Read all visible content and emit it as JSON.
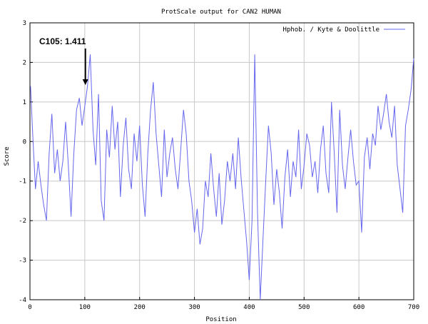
{
  "chart_data": {
    "type": "line",
    "title": "ProtScale output for CAN2 HUMAN",
    "xlabel": "Position",
    "ylabel": "Score",
    "xlim": [
      0,
      700
    ],
    "ylim": [
      -4,
      3
    ],
    "xticks": [
      0,
      100,
      200,
      300,
      400,
      500,
      600,
      700
    ],
    "yticks": [
      -4,
      -3,
      -2,
      -1,
      0,
      1,
      2,
      3
    ],
    "grid": true,
    "legend": "top-right",
    "series": [
      {
        "name": "Hphob. / Kyte & Doolittle",
        "color": "#6666ee",
        "x": [
          1,
          5,
          10,
          15,
          20,
          25,
          30,
          35,
          40,
          45,
          50,
          55,
          60,
          65,
          70,
          75,
          80,
          85,
          90,
          95,
          100,
          105,
          110,
          115,
          120,
          125,
          130,
          135,
          140,
          145,
          150,
          155,
          160,
          165,
          170,
          175,
          180,
          185,
          190,
          195,
          200,
          205,
          210,
          215,
          220,
          225,
          230,
          235,
          240,
          245,
          250,
          255,
          260,
          265,
          270,
          275,
          280,
          285,
          290,
          295,
          300,
          305,
          310,
          315,
          320,
          325,
          330,
          335,
          340,
          345,
          350,
          355,
          360,
          365,
          370,
          375,
          380,
          385,
          390,
          395,
          400,
          405,
          410,
          415,
          420,
          425,
          430,
          435,
          440,
          445,
          450,
          455,
          460,
          465,
          470,
          475,
          480,
          485,
          490,
          495,
          500,
          505,
          510,
          515,
          520,
          525,
          530,
          535,
          540,
          545,
          550,
          555,
          560,
          565,
          570,
          575,
          580,
          585,
          590,
          595,
          600,
          605,
          610,
          615,
          620,
          625,
          630,
          635,
          640,
          645,
          650,
          655,
          660,
          665,
          670,
          675,
          680,
          685,
          690,
          695,
          700
        ],
        "y": [
          1.4,
          0.2,
          -1.2,
          -0.5,
          -1.1,
          -1.6,
          -2.0,
          -0.3,
          0.7,
          -0.8,
          -0.2,
          -1.0,
          -0.5,
          0.5,
          -0.6,
          -1.9,
          -0.3,
          0.8,
          1.1,
          0.4,
          0.9,
          1.411,
          2.2,
          0.3,
          -0.6,
          1.2,
          -1.5,
          -2.0,
          0.3,
          -0.4,
          0.9,
          -0.2,
          0.5,
          -1.4,
          -0.1,
          0.6,
          -0.7,
          -1.2,
          0.2,
          -0.5,
          0.4,
          -1.1,
          -1.9,
          -0.3,
          0.8,
          1.5,
          0.2,
          -0.6,
          -1.4,
          0.3,
          -0.9,
          -0.3,
          0.1,
          -0.7,
          -1.2,
          -0.2,
          0.8,
          0.2,
          -1.0,
          -1.5,
          -2.3,
          -1.7,
          -2.6,
          -2.2,
          -1.0,
          -1.4,
          -0.3,
          -1.2,
          -1.9,
          -0.8,
          -2.1,
          -1.5,
          -0.5,
          -1.0,
          -0.3,
          -1.2,
          0.1,
          -0.9,
          -1.7,
          -2.5,
          -3.5,
          -2.0,
          2.2,
          -1.8,
          -4.0,
          -2.5,
          -1.0,
          0.4,
          -0.3,
          -1.6,
          -0.7,
          -1.3,
          -2.2,
          -0.9,
          -0.2,
          -1.4,
          -0.5,
          -0.9,
          0.3,
          -1.2,
          -0.6,
          0.2,
          -0.1,
          -0.9,
          -0.5,
          -1.3,
          -0.2,
          0.4,
          -0.8,
          -1.3,
          1.0,
          -0.3,
          -1.8,
          0.8,
          -0.6,
          -1.2,
          -0.4,
          0.3,
          -0.5,
          -1.1,
          -1.0,
          -2.3,
          -0.4,
          0.1,
          -0.7,
          0.2,
          -0.1,
          0.9,
          0.3,
          0.7,
          1.2,
          0.5,
          0.1,
          0.9,
          -0.6,
          -1.2,
          -1.8,
          0.4,
          0.8,
          1.3,
          2.1
        ]
      }
    ],
    "annotation": {
      "text": "C105: 1.411",
      "x": 105,
      "y": 1.411
    }
  }
}
